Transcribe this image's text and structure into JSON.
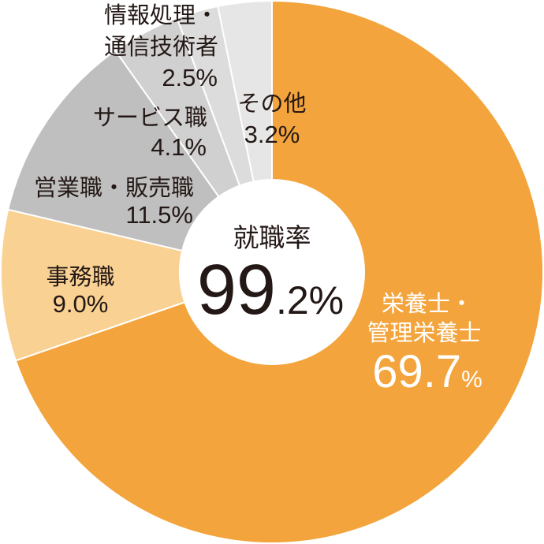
{
  "chart_data": {
    "type": "pie",
    "donut": true,
    "unit": "%",
    "slices": [
      {
        "label": [
          "栄養士・",
          "管理栄養士"
        ],
        "value": 69.7,
        "value_text": "69.7",
        "color": "#F3A43C"
      },
      {
        "label": [
          "事務職"
        ],
        "value": 9.0,
        "value_text": "9.0",
        "color": "#F9D193"
      },
      {
        "label": [
          "営業職・販売職"
        ],
        "value": 11.5,
        "value_text": "11.5",
        "color": "#BFBFBF"
      },
      {
        "label": [
          "サービス職"
        ],
        "value": 4.1,
        "value_text": "4.1",
        "color": "#D0D0D0"
      },
      {
        "label": [
          "情報処理・",
          "通信技術者"
        ],
        "value": 2.5,
        "value_text": "2.5",
        "color": "#DCDCDC"
      },
      {
        "label": [
          "その他"
        ],
        "value": 3.2,
        "value_text": "3.2",
        "color": "#E6E6E6"
      }
    ],
    "center": {
      "label": "就職率",
      "value_whole": "99",
      "value_fraction": ".2"
    }
  }
}
